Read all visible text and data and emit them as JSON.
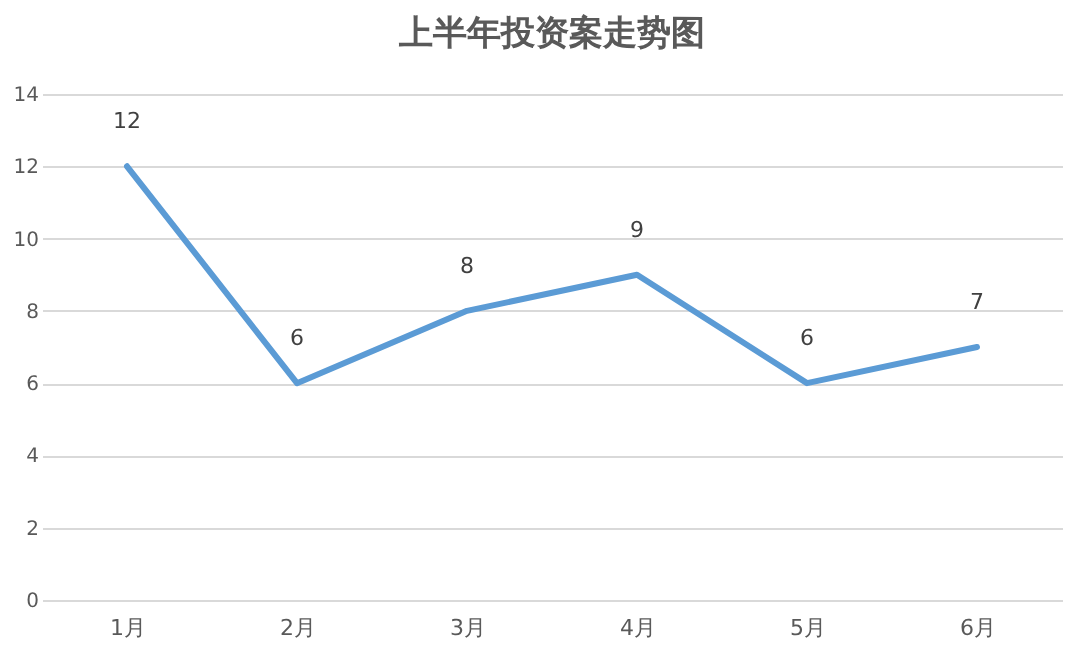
{
  "chart_data": {
    "type": "line",
    "title": "上半年投资案走势图",
    "categories": [
      "1月",
      "2月",
      "3月",
      "4月",
      "5月",
      "6月"
    ],
    "series": [
      {
        "color": "#5b9bd5",
        "values": [
          12,
          6,
          8,
          9,
          6,
          7
        ]
      }
    ],
    "ylim": [
      0,
      14
    ],
    "yticks": [
      0,
      2,
      4,
      6,
      8,
      10,
      12,
      14
    ],
    "grid": "y",
    "data_labels": true
  }
}
